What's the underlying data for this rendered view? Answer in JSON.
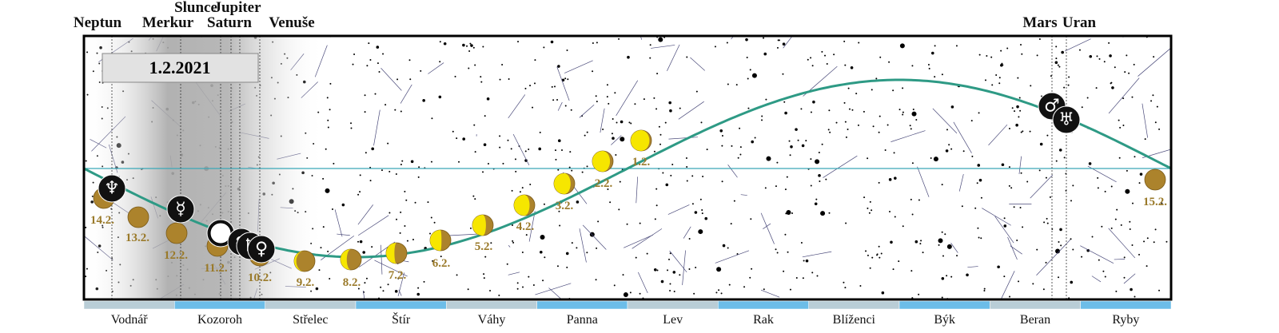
{
  "date": "1.2.2021",
  "planets": [
    {
      "name": "Neptun",
      "symbol": "♆"
    },
    {
      "name": "Merkur",
      "symbol": "☿"
    },
    {
      "name": "Slunce",
      "symbol": "☉"
    },
    {
      "name": "Jupiter",
      "symbol": "♃"
    },
    {
      "name": "Saturn",
      "symbol": "♄"
    },
    {
      "name": "Venuše",
      "symbol": "♀"
    },
    {
      "name": "Mars",
      "symbol": "♂"
    },
    {
      "name": "Uran",
      "symbol": "♅"
    }
  ],
  "moons": [
    "14.2.",
    "13.2.",
    "12.2.",
    "11.2.",
    "10.2.",
    "9.2.",
    "8.2.",
    "7.2.",
    "6.2.",
    "5.2.",
    "4.2.",
    "3.2.",
    "2.2.",
    "1.2.",
    "15.2."
  ],
  "constellations": [
    "Vodnář",
    "Kozoroh",
    "Střelec",
    "Štír",
    "Váhy",
    "Panna",
    "Lev",
    "Rak",
    "Blíženci",
    "Býk",
    "Beran",
    "Ryby"
  ]
}
